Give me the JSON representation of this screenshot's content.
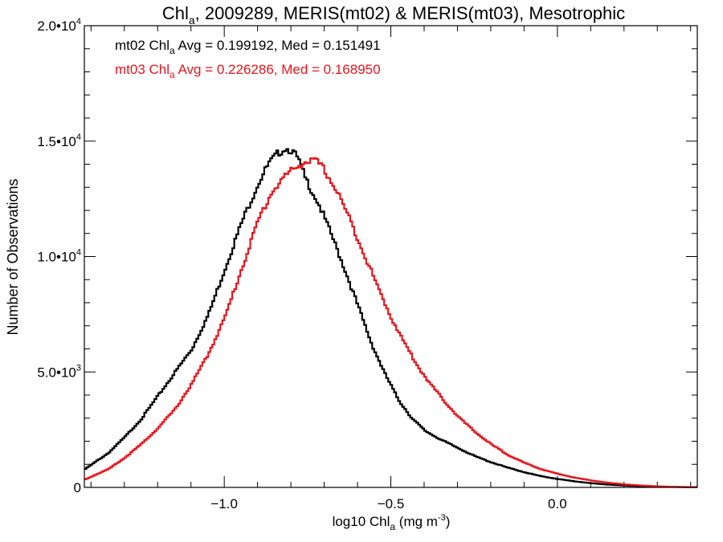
{
  "chart_data": {
    "type": "line",
    "title": {
      "prefix": "Chl",
      "sub": "a",
      "suffix": ", 2009289, MERIS(mt02) & MERIS(mt03), Mesotrophic"
    },
    "xlabel": {
      "prefix": "log10 Chl",
      "sub": "a",
      "mid": " (mg m",
      "sup": "-3",
      "suffix": ")"
    },
    "ylabel": "Number of Observations",
    "xlim": [
      -1.42,
      0.42
    ],
    "ylim": [
      0,
      20000
    ],
    "x_ticks": [
      {
        "value": -1.0,
        "label": "−1.0"
      },
      {
        "value": -0.5,
        "label": "−0.5"
      },
      {
        "value": 0.0,
        "label": "0.0"
      }
    ],
    "y_ticks": [
      {
        "value": 0,
        "mant": "0",
        "exp": ""
      },
      {
        "value": 5000,
        "mant": "5.0•10",
        "exp": "3"
      },
      {
        "value": 10000,
        "mant": "1.0•10",
        "exp": "4"
      },
      {
        "value": 15000,
        "mant": "1.5•10",
        "exp": "4"
      },
      {
        "value": 20000,
        "mant": "2.0•10",
        "exp": "4"
      }
    ],
    "annotations": [
      {
        "prefix": "mt02 Chl",
        "sub": "a",
        "suffix": " Avg = 0.199192, Med = 0.151491",
        "color": "#000000"
      },
      {
        "prefix": "mt03 Chl",
        "sub": "a",
        "suffix": " Avg = 0.226286, Med = 0.168950",
        "color": "#e8141c"
      }
    ],
    "series": [
      {
        "color": "#000000",
        "x": [
          -1.42,
          -1.35,
          -1.3,
          -1.25,
          -1.2,
          -1.15,
          -1.1,
          -1.05,
          -1.0,
          -0.95,
          -0.9,
          -0.87,
          -0.84,
          -0.82,
          -0.8,
          -0.78,
          -0.76,
          -0.72,
          -0.68,
          -0.64,
          -0.6,
          -0.56,
          -0.52,
          -0.48,
          -0.44,
          -0.4,
          -0.35,
          -0.3,
          -0.25,
          -0.2,
          -0.15,
          -0.1,
          -0.05,
          0.0,
          0.05,
          0.1,
          0.15,
          0.2,
          0.25,
          0.3,
          0.35,
          0.42
        ],
        "y": [
          800,
          1500,
          2200,
          3000,
          4000,
          5000,
          6000,
          7500,
          9500,
          11500,
          13200,
          14000,
          14500,
          14700,
          14600,
          14200,
          13400,
          12300,
          10900,
          9400,
          7800,
          6200,
          4900,
          3800,
          3000,
          2450,
          2050,
          1700,
          1350,
          1080,
          850,
          650,
          480,
          360,
          260,
          180,
          120,
          80,
          50,
          30,
          20,
          10
        ]
      },
      {
        "color": "#e8141c",
        "x": [
          -1.42,
          -1.35,
          -1.3,
          -1.25,
          -1.2,
          -1.15,
          -1.1,
          -1.05,
          -1.0,
          -0.95,
          -0.9,
          -0.86,
          -0.82,
          -0.78,
          -0.76,
          -0.74,
          -0.72,
          -0.7,
          -0.66,
          -0.62,
          -0.58,
          -0.54,
          -0.5,
          -0.46,
          -0.42,
          -0.38,
          -0.34,
          -0.3,
          -0.25,
          -0.2,
          -0.15,
          -0.1,
          -0.05,
          0.0,
          0.05,
          0.1,
          0.15,
          0.2,
          0.25,
          0.3,
          0.35,
          0.42
        ],
        "y": [
          350,
          800,
          1300,
          1900,
          2600,
          3400,
          4500,
          5800,
          7400,
          9500,
          11600,
          12800,
          13500,
          13950,
          14100,
          14150,
          14050,
          13700,
          12700,
          11400,
          10000,
          8600,
          7300,
          6200,
          5200,
          4400,
          3700,
          3050,
          2400,
          1850,
          1400,
          1050,
          780,
          580,
          420,
          300,
          200,
          130,
          80,
          45,
          20,
          10
        ]
      }
    ]
  }
}
